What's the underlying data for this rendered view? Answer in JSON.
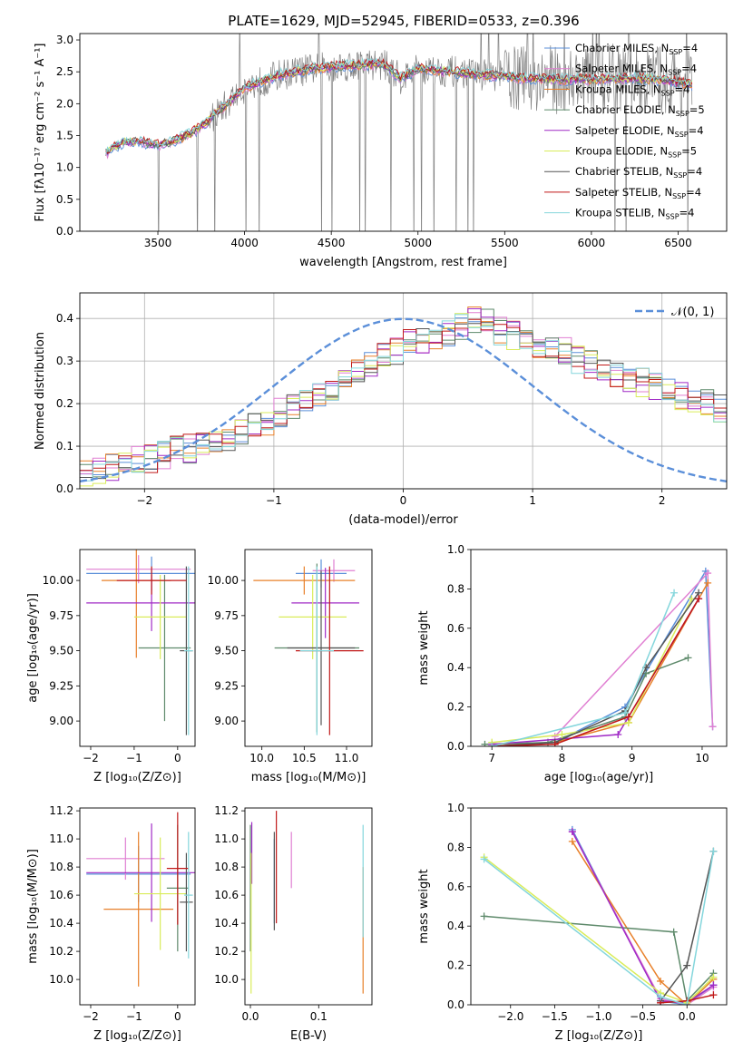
{
  "figure": {
    "title": "PLATE=1629, MJD=52945, FIBERID=0533, z=0.396"
  },
  "series": [
    {
      "name": "Chabrier MILES, N",
      "sub": "SSP",
      "tail": "=4",
      "color": "#5b8fd9"
    },
    {
      "name": "Salpeter MILES, N",
      "sub": "SSP",
      "tail": "=4",
      "color": "#e07fd2"
    },
    {
      "name": "Kroupa MILES, N",
      "sub": "SSP",
      "tail": "=4",
      "color": "#e8802a"
    },
    {
      "name": "Chabrier ELODIE, N",
      "sub": "SSP",
      "tail": "=5",
      "color": "#5e8a6b"
    },
    {
      "name": "Salpeter ELODIE, N",
      "sub": "SSP",
      "tail": "=4",
      "color": "#a02ac6"
    },
    {
      "name": "Kroupa ELODIE, N",
      "sub": "SSP",
      "tail": "=5",
      "color": "#d9ec5a"
    },
    {
      "name": "Chabrier STELIB, N",
      "sub": "SSP",
      "tail": "=4",
      "color": "#555555"
    },
    {
      "name": "Salpeter STELIB, N",
      "sub": "SSP",
      "tail": "=4",
      "color": "#c01818"
    },
    {
      "name": "Kroupa STELIB, N",
      "sub": "SSP",
      "tail": "=4",
      "color": "#84d6dc"
    }
  ],
  "chart_data": [
    {
      "id": "spectrum",
      "type": "line",
      "xlabel": "wavelength [Angstrom, rest frame]",
      "ylabel": "Flux [fλ10⁻¹⁷ erg cm⁻² s⁻¹ A⁻¹]",
      "xlim": [
        3050,
        6780
      ],
      "ylim": [
        0,
        3.1
      ],
      "xticks": [
        3500,
        4000,
        4500,
        5000,
        5500,
        6000,
        6500
      ],
      "yticks": [
        0.0,
        0.5,
        1.0,
        1.5,
        2.0,
        2.5,
        3.0
      ],
      "ytick_labels": [
        "0.0",
        "0.5",
        "1.0",
        "1.5",
        "2.0",
        "2.5",
        "3.0"
      ],
      "continuum": [
        [
          3200,
          1.22
        ],
        [
          3300,
          1.4
        ],
        [
          3400,
          1.4
        ],
        [
          3500,
          1.35
        ],
        [
          3600,
          1.42
        ],
        [
          3700,
          1.55
        ],
        [
          3800,
          1.75
        ],
        [
          3900,
          2.0
        ],
        [
          4000,
          2.25
        ],
        [
          4200,
          2.45
        ],
        [
          4400,
          2.55
        ],
        [
          4600,
          2.6
        ],
        [
          4800,
          2.62
        ],
        [
          4900,
          2.4
        ],
        [
          5000,
          2.55
        ],
        [
          5200,
          2.5
        ],
        [
          5400,
          2.45
        ],
        [
          5600,
          2.4
        ],
        [
          5800,
          2.38
        ],
        [
          6000,
          2.38
        ],
        [
          6200,
          2.4
        ],
        [
          6400,
          2.38
        ],
        [
          6580,
          2.3
        ]
      ],
      "grid": false,
      "legend": "upper right"
    },
    {
      "id": "residuals",
      "type": "histogram",
      "xlabel": "(data-model)/error",
      "ylabel": "Normed distribution",
      "xlim": [
        -2.5,
        2.5
      ],
      "ylim": [
        0,
        0.46
      ],
      "xticks": [
        -2,
        -1,
        0,
        1,
        2
      ],
      "xtick_labels": [
        "−2",
        "−1",
        "0",
        "1",
        "2"
      ],
      "yticks": [
        0.0,
        0.1,
        0.2,
        0.3,
        0.4
      ],
      "ytick_labels": [
        "0.0",
        "0.1",
        "0.2",
        "0.3",
        "0.4"
      ],
      "bin_width": 0.1,
      "bin_start": -2.5,
      "base_values": [
        0.04,
        0.045,
        0.05,
        0.06,
        0.065,
        0.07,
        0.08,
        0.09,
        0.095,
        0.1,
        0.11,
        0.12,
        0.13,
        0.15,
        0.16,
        0.18,
        0.19,
        0.2,
        0.22,
        0.24,
        0.25,
        0.27,
        0.29,
        0.31,
        0.32,
        0.34,
        0.35,
        0.36,
        0.37,
        0.38,
        0.4,
        0.39,
        0.37,
        0.36,
        0.35,
        0.34,
        0.33,
        0.32,
        0.3,
        0.29,
        0.28,
        0.27,
        0.26,
        0.25,
        0.24,
        0.23,
        0.22,
        0.21,
        0.2,
        0.19,
        0.18,
        0.17,
        0.16,
        0.15,
        0.14,
        0.13,
        0.12,
        0.11,
        0.1,
        0.09,
        0.08,
        0.075,
        0.07,
        0.065,
        0.06,
        0.055,
        0.05,
        0.05,
        0.05,
        0.05
      ],
      "gaussian_label": "𝒩(0, 1)",
      "grid": true,
      "legend": "upper right"
    },
    {
      "id": "age_vs_Z",
      "type": "errorbar",
      "xlabel": "Z [log₁₀(Z/Z⊙)]",
      "ylabel": "age  [log₁₀(age/yr)]",
      "xlim": [
        -2.25,
        0.4
      ],
      "ylim": [
        8.82,
        10.22
      ],
      "xticks": [
        -2,
        -1,
        0
      ],
      "xtick_labels": [
        "−2",
        "−1",
        "0"
      ],
      "yticks": [
        9.0,
        9.25,
        9.5,
        9.75,
        10.0
      ],
      "ytick_labels": [
        "9.00",
        "9.25",
        "9.50",
        "9.75",
        "10.00"
      ],
      "points": [
        {
          "s": 0,
          "x": -0.6,
          "xe": 1.5,
          "y": 10.05,
          "ye": 0.12
        },
        {
          "s": 1,
          "x": -0.9,
          "xe": 1.2,
          "y": 10.08,
          "ye": 0.1
        },
        {
          "s": 2,
          "x": -0.95,
          "xe": 0.8,
          "y": 10.0,
          "ye": 0.55
        },
        {
          "s": 3,
          "x": -0.3,
          "xe": 0.6,
          "y": 9.52,
          "ye": 0.52
        },
        {
          "s": 4,
          "x": -0.6,
          "xe": 1.5,
          "y": 9.84,
          "ye": 0.2
        },
        {
          "s": 5,
          "x": -0.4,
          "xe": 0.6,
          "y": 9.74,
          "ye": 0.3
        },
        {
          "s": 6,
          "x": 0.2,
          "xe": 0.15,
          "y": 9.5,
          "ye": 0.6
        },
        {
          "s": 7,
          "x": -0.6,
          "xe": 0.8,
          "y": 10.0,
          "ye": 0.1
        },
        {
          "s": 8,
          "x": 0.25,
          "xe": 0.1,
          "y": 9.5,
          "ye": 0.6
        }
      ]
    },
    {
      "id": "age_vs_mass",
      "type": "errorbar",
      "xlabel": "mass [log₁₀(M/M⊙)]",
      "ylabel": "",
      "xlim": [
        9.8,
        11.3
      ],
      "ylim": [
        8.82,
        10.22
      ],
      "xticks": [
        10.0,
        10.5,
        11.0
      ],
      "xtick_labels": [
        "10.0",
        "10.5",
        "11.0"
      ],
      "yticks": [
        9.0,
        9.25,
        9.5,
        9.75,
        10.0
      ],
      "ytick_labels": [
        "9.00",
        "9.25",
        "9.50",
        "9.75",
        "10.00"
      ],
      "points": [
        {
          "s": 0,
          "x": 10.7,
          "xe": 0.3,
          "y": 10.05,
          "ye": 0.1
        },
        {
          "s": 1,
          "x": 10.85,
          "xe": 0.25,
          "y": 10.07,
          "ye": 0.08
        },
        {
          "s": 2,
          "x": 10.5,
          "xe": 0.6,
          "y": 10.0,
          "ye": 0.1
        },
        {
          "s": 3,
          "x": 10.65,
          "xe": 0.5,
          "y": 9.52,
          "ye": 0.6
        },
        {
          "s": 4,
          "x": 10.75,
          "xe": 0.4,
          "y": 9.84,
          "ye": 0.25
        },
        {
          "s": 5,
          "x": 10.6,
          "xe": 0.4,
          "y": 9.74,
          "ye": 0.3
        },
        {
          "s": 6,
          "x": 10.7,
          "xe": 0.4,
          "y": 9.52,
          "ye": 0.55
        },
        {
          "s": 7,
          "x": 10.8,
          "xe": 0.4,
          "y": 9.5,
          "ye": 0.6
        },
        {
          "s": 8,
          "x": 10.65,
          "xe": 0.2,
          "y": 9.5,
          "ye": 0.6
        }
      ]
    },
    {
      "id": "weight_vs_age",
      "type": "line",
      "xlabel": "age  [log₁₀(age/yr)]",
      "ylabel": "mass weight",
      "xlim": [
        6.7,
        10.35
      ],
      "ylim": [
        0,
        1
      ],
      "xticks": [
        7,
        8,
        9,
        10
      ],
      "xtick_labels": [
        "7",
        "8",
        "9",
        "10"
      ],
      "yticks": [
        0.0,
        0.2,
        0.4,
        0.6,
        0.8,
        1.0
      ],
      "ytick_labels": [
        "0.0",
        "0.2",
        "0.4",
        "0.6",
        "0.8",
        "1.0"
      ],
      "lines": [
        {
          "s": 0,
          "pts": [
            [
              7.0,
              0.0
            ],
            [
              7.9,
              0.02
            ],
            [
              8.9,
              0.2
            ],
            [
              10.05,
              0.89
            ],
            [
              10.15,
              0.1
            ]
          ]
        },
        {
          "s": 1,
          "pts": [
            [
              7.9,
              0.05
            ],
            [
              10.08,
              0.88
            ],
            [
              10.15,
              0.1
            ]
          ]
        },
        {
          "s": 2,
          "pts": [
            [
              7.0,
              0.01
            ],
            [
              7.9,
              0.02
            ],
            [
              8.95,
              0.12
            ],
            [
              10.08,
              0.83
            ]
          ]
        },
        {
          "s": 3,
          "pts": [
            [
              6.9,
              0.01
            ],
            [
              7.8,
              0.02
            ],
            [
              8.9,
              0.15
            ],
            [
              9.2,
              0.37
            ],
            [
              9.8,
              0.45
            ]
          ]
        },
        {
          "s": 4,
          "pts": [
            [
              7.0,
              0.01
            ],
            [
              8.8,
              0.06
            ],
            [
              9.95,
              0.75
            ]
          ]
        },
        {
          "s": 5,
          "pts": [
            [
              7.0,
              0.02
            ],
            [
              8.0,
              0.06
            ],
            [
              8.95,
              0.12
            ],
            [
              9.85,
              0.75
            ]
          ]
        },
        {
          "s": 6,
          "pts": [
            [
              7.0,
              0.0
            ],
            [
              7.9,
              0.02
            ],
            [
              8.9,
              0.18
            ],
            [
              9.2,
              0.4
            ],
            [
              9.95,
              0.78
            ]
          ]
        },
        {
          "s": 7,
          "pts": [
            [
              7.0,
              0.0
            ],
            [
              7.9,
              0.01
            ],
            [
              8.95,
              0.15
            ],
            [
              9.95,
              0.75
            ]
          ]
        },
        {
          "s": 8,
          "pts": [
            [
              7.0,
              0.0
            ],
            [
              8.9,
              0.17
            ],
            [
              9.6,
              0.78
            ]
          ]
        }
      ]
    },
    {
      "id": "mass_vs_Z",
      "type": "errorbar",
      "xlabel": "Z [log₁₀(Z/Z⊙)]",
      "ylabel": "mass [log₁₀(M/M⊙)]",
      "xlim": [
        -2.25,
        0.4
      ],
      "ylim": [
        9.82,
        11.22
      ],
      "xticks": [
        -2,
        -1,
        0
      ],
      "xtick_labels": [
        "−2",
        "−1",
        "0"
      ],
      "yticks": [
        10.0,
        10.2,
        10.4,
        10.6,
        10.8,
        11.0,
        11.2
      ],
      "ytick_labels": [
        "10.0",
        "10.2",
        "10.4",
        "10.6",
        "10.8",
        "11.0",
        "11.2"
      ],
      "points": [
        {
          "s": 0,
          "x": -0.9,
          "xe": 1.2,
          "y": 10.75,
          "ye": 0.2
        },
        {
          "s": 1,
          "x": -1.2,
          "xe": 0.9,
          "y": 10.86,
          "ye": 0.15
        },
        {
          "s": 2,
          "x": -0.9,
          "xe": 0.8,
          "y": 10.5,
          "ye": 0.55
        },
        {
          "s": 3,
          "x": 0.0,
          "xe": 0.25,
          "y": 10.65,
          "ye": 0.45
        },
        {
          "s": 4,
          "x": -0.6,
          "xe": 1.5,
          "y": 10.76,
          "ye": 0.35
        },
        {
          "s": 5,
          "x": -0.4,
          "xe": 0.6,
          "y": 10.61,
          "ye": 0.4
        },
        {
          "s": 6,
          "x": 0.2,
          "xe": 0.15,
          "y": 10.55,
          "ye": 0.35
        },
        {
          "s": 7,
          "x": 0.0,
          "xe": 0.25,
          "y": 10.79,
          "ye": 0.4
        },
        {
          "s": 8,
          "x": 0.25,
          "xe": 0.1,
          "y": 10.6,
          "ye": 0.45
        }
      ]
    },
    {
      "id": "mass_vs_ebv",
      "type": "errorbar",
      "xlabel": "E(B-V)",
      "ylabel": "",
      "xlim": [
        -0.008,
        0.178
      ],
      "ylim": [
        9.82,
        11.22
      ],
      "xticks": [
        0.0,
        0.1
      ],
      "xtick_labels": [
        "0.0",
        "0.1"
      ],
      "yticks": [
        10.0,
        10.2,
        10.4,
        10.6,
        10.8,
        11.0,
        11.2
      ],
      "ytick_labels": [
        "10.0",
        "10.2",
        "10.4",
        "10.6",
        "10.8",
        "11.0",
        "11.2"
      ],
      "points": [
        {
          "s": 0,
          "x": 0.035,
          "xe": 0.0,
          "y": 10.7,
          "ye": 0.3
        },
        {
          "s": 1,
          "x": 0.06,
          "xe": 0.0,
          "y": 10.85,
          "ye": 0.2
        },
        {
          "s": 2,
          "x": 0.165,
          "xe": 0.0,
          "y": 10.35,
          "ye": 0.45
        },
        {
          "s": 3,
          "x": 0.0,
          "xe": 0.0,
          "y": 10.65,
          "ye": 0.45
        },
        {
          "s": 4,
          "x": 0.002,
          "xe": 0.0,
          "y": 10.9,
          "ye": 0.22
        },
        {
          "s": 5,
          "x": 0.001,
          "xe": 0.0,
          "y": 10.4,
          "ye": 0.5
        },
        {
          "s": 6,
          "x": 0.035,
          "xe": 0.0,
          "y": 10.7,
          "ye": 0.35
        },
        {
          "s": 7,
          "x": 0.038,
          "xe": 0.0,
          "y": 10.8,
          "ye": 0.4
        },
        {
          "s": 8,
          "x": 0.165,
          "xe": 0.0,
          "y": 10.7,
          "ye": 0.4
        }
      ]
    },
    {
      "id": "weight_vs_Z",
      "type": "line",
      "xlabel": "Z [log₁₀(Z/Z⊙)]",
      "ylabel": "mass weight",
      "xlim": [
        -2.45,
        0.45
      ],
      "ylim": [
        0,
        1
      ],
      "xticks": [
        -2.0,
        -1.5,
        -1.0,
        -0.5,
        0.0
      ],
      "xtick_labels": [
        "−2.0",
        "−1.5",
        "−1.0",
        "−0.5",
        "0.0"
      ],
      "yticks": [
        0.0,
        0.2,
        0.4,
        0.6,
        0.8,
        1.0
      ],
      "ytick_labels": [
        "0.0",
        "0.2",
        "0.4",
        "0.6",
        "0.8",
        "1.0"
      ],
      "lines": [
        {
          "s": 0,
          "pts": [
            [
              -1.3,
              0.89
            ],
            [
              -0.3,
              0.02
            ],
            [
              0.0,
              0.0
            ],
            [
              0.3,
              0.1
            ]
          ]
        },
        {
          "s": 1,
          "pts": [
            [
              -1.3,
              0.88
            ],
            [
              -0.3,
              0.03
            ],
            [
              0.0,
              0.0
            ],
            [
              0.3,
              0.09
            ]
          ]
        },
        {
          "s": 2,
          "pts": [
            [
              -1.3,
              0.83
            ],
            [
              -0.3,
              0.12
            ],
            [
              0.0,
              0.0
            ],
            [
              0.3,
              0.13
            ]
          ]
        },
        {
          "s": 3,
          "pts": [
            [
              -2.3,
              0.45
            ],
            [
              -0.15,
              0.37
            ],
            [
              0.0,
              0.02
            ],
            [
              0.3,
              0.16
            ]
          ]
        },
        {
          "s": 4,
          "pts": [
            [
              -1.3,
              0.88
            ],
            [
              -0.3,
              0.02
            ],
            [
              0.0,
              0.01
            ],
            [
              0.3,
              0.1
            ]
          ]
        },
        {
          "s": 5,
          "pts": [
            [
              -2.3,
              0.75
            ],
            [
              -0.3,
              0.06
            ],
            [
              0.0,
              0.01
            ],
            [
              0.3,
              0.14
            ]
          ]
        },
        {
          "s": 6,
          "pts": [
            [
              -0.3,
              0.02
            ],
            [
              0.0,
              0.2
            ],
            [
              0.3,
              0.78
            ]
          ]
        },
        {
          "s": 7,
          "pts": [
            [
              -0.3,
              0.01
            ],
            [
              0.0,
              0.02
            ],
            [
              0.3,
              0.05
            ]
          ]
        },
        {
          "s": 8,
          "pts": [
            [
              -2.3,
              0.74
            ],
            [
              -0.3,
              0.04
            ],
            [
              0.0,
              0.0
            ],
            [
              0.3,
              0.78
            ]
          ]
        }
      ]
    }
  ]
}
